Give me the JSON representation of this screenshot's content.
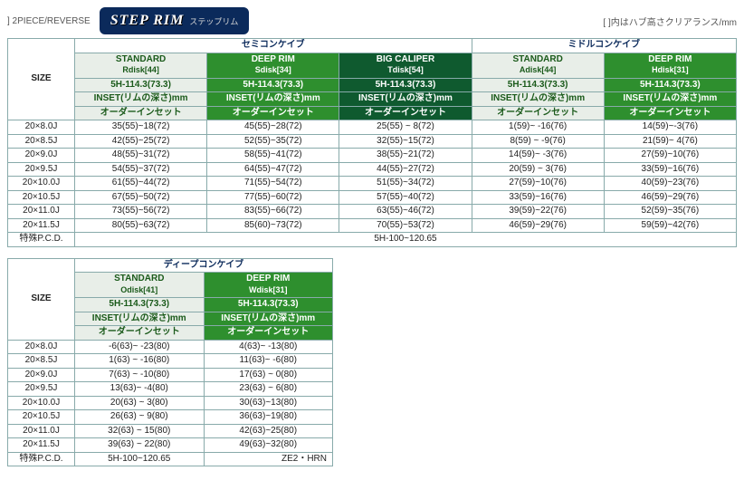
{
  "header": {
    "left": "]  2PIECE/REVERSE",
    "badge_main": "STEP RIM",
    "badge_sub": "ステップリム",
    "right": "[  ]内はハブ高さクリアランス/mm"
  },
  "labels": {
    "size": "SIZE",
    "group_semi": "セミコンケイブ",
    "group_middle": "ミドルコンケイブ",
    "group_deep": "ディープコンケイブ",
    "pcd_label": "特殊P.C.D.",
    "inset": "INSET(リムの深さ)mm",
    "order": "オーダーインセット",
    "h5": "5H-114.3(73.3)"
  },
  "cols1": [
    {
      "title": "STANDARD",
      "disk": "Rdisk[44]",
      "cls": "std"
    },
    {
      "title": "DEEP RIM",
      "disk": "Sdisk[34]",
      "cls": "deep"
    },
    {
      "title": "BIG CALIPER",
      "disk": "Tdisk[54]",
      "cls": "big"
    },
    {
      "title": "STANDARD",
      "disk": "Adisk[44]",
      "cls": "std"
    },
    {
      "title": "DEEP RIM",
      "disk": "Hdisk[31]",
      "cls": "deep"
    }
  ],
  "rows1": [
    {
      "size": "20×8.0J",
      "v": [
        "35(55)~18(72)",
        "45(55)~28(72)",
        "25(55) ~ 8(72)",
        "1(59)~ -16(76)",
        "14(59)~-3(76)"
      ]
    },
    {
      "size": "20×8.5J",
      "v": [
        "42(55)~25(72)",
        "52(55)~35(72)",
        "32(55)~15(72)",
        "8(59) ~ -9(76)",
        "21(59)~ 4(76)"
      ]
    },
    {
      "size": "20×9.0J",
      "v": [
        "48(55)~31(72)",
        "58(55)~41(72)",
        "38(55)~21(72)",
        "14(59)~ -3(76)",
        "27(59)~10(76)"
      ]
    },
    {
      "size": "20×9.5J",
      "v": [
        "54(55)~37(72)",
        "64(55)~47(72)",
        "44(55)~27(72)",
        "20(59) ~ 3(76)",
        "33(59)~16(76)"
      ]
    },
    {
      "size": "20×10.0J",
      "v": [
        "61(55)~44(72)",
        "71(55)~54(72)",
        "51(55)~34(72)",
        "27(59)~10(76)",
        "40(59)~23(76)"
      ]
    },
    {
      "size": "20×10.5J",
      "v": [
        "67(55)~50(72)",
        "77(55)~60(72)",
        "57(55)~40(72)",
        "33(59)~16(76)",
        "46(59)~29(76)"
      ]
    },
    {
      "size": "20×11.0J",
      "v": [
        "73(55)~56(72)",
        "83(55)~66(72)",
        "63(55)~46(72)",
        "39(59)~22(76)",
        "52(59)~35(76)"
      ]
    },
    {
      "size": "20×11.5J",
      "v": [
        "80(55)~63(72)",
        "85(60)~73(72)",
        "70(55)~53(72)",
        "46(59)~29(76)",
        "59(59)~42(76)"
      ]
    }
  ],
  "pcd1": "5H-100~120.65",
  "cols2": [
    {
      "title": "STANDARD",
      "disk": "Odisk[41]",
      "cls": "std"
    },
    {
      "title": "DEEP RIM",
      "disk": "Wdisk[31]",
      "cls": "deep"
    }
  ],
  "rows2": [
    {
      "size": "20×8.0J",
      "v": [
        "-6(63)~ -23(80)",
        "4(63)~ -13(80)"
      ]
    },
    {
      "size": "20×8.5J",
      "v": [
        "1(63) ~ -16(80)",
        "11(63)~ -6(80)"
      ]
    },
    {
      "size": "20×9.0J",
      "v": [
        "7(63) ~ -10(80)",
        "17(63) ~ 0(80)"
      ]
    },
    {
      "size": "20×9.5J",
      "v": [
        "13(63)~ -4(80)",
        "23(63) ~ 6(80)"
      ]
    },
    {
      "size": "20×10.0J",
      "v": [
        "20(63) ~  3(80)",
        "30(63)~13(80)"
      ]
    },
    {
      "size": "20×10.5J",
      "v": [
        "26(63) ~  9(80)",
        "36(63)~19(80)"
      ]
    },
    {
      "size": "20×11.0J",
      "v": [
        "32(63) ~ 15(80)",
        "42(63)~25(80)"
      ]
    },
    {
      "size": "20×11.5J",
      "v": [
        "39(63) ~ 22(80)",
        "49(63)~32(80)"
      ]
    }
  ],
  "pcd2": "5H-100~120.65",
  "pcd2_extra": "ZE2・HRN",
  "colors": {
    "std_bg": "#e8eee8",
    "std_fg": "#1a5a1a",
    "deep_bg": "#2e8f2e",
    "deep_fg": "#ffffff",
    "big_bg": "#0f5a2f",
    "big_fg": "#ffffff",
    "border": "#8aa"
  }
}
